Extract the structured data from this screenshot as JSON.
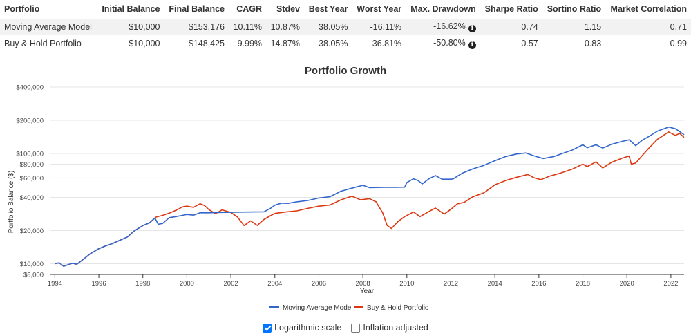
{
  "table": {
    "headers": [
      "Portfolio",
      "Initial Balance",
      "Final Balance",
      "CAGR",
      "Stdev",
      "Best Year",
      "Worst Year",
      "Max. Drawdown",
      "Sharpe Ratio",
      "Sortino Ratio",
      "Market Correlation"
    ],
    "rows": [
      {
        "portfolio": "Moving Average Model",
        "initial": "$10,000",
        "final": "$153,176",
        "cagr": "10.11%",
        "stdev": "10.87%",
        "best": "38.05%",
        "worst": "-16.11%",
        "drawdown": "-16.62%",
        "sharpe": "0.74",
        "sortino": "1.15",
        "correlation": "0.71"
      },
      {
        "portfolio": "Buy & Hold Portfolio",
        "initial": "$10,000",
        "final": "$148,425",
        "cagr": "9.99%",
        "stdev": "14.87%",
        "best": "38.05%",
        "worst": "-36.81%",
        "drawdown": "-50.80%",
        "sharpe": "0.57",
        "sortino": "0.83",
        "correlation": "0.99"
      }
    ]
  },
  "chart_data": {
    "type": "line",
    "title": "Portfolio Growth",
    "xlabel": "Year",
    "ylabel": "Portfolio Balance ($)",
    "y_scale": "log",
    "ylim": [
      8000,
      400000
    ],
    "xlim": [
      1993.8,
      2022.6
    ],
    "grid": true,
    "legend_position": "bottom",
    "x_ticks": [
      1994,
      1996,
      1998,
      2000,
      2002,
      2004,
      2006,
      2008,
      2010,
      2012,
      2014,
      2016,
      2018,
      2020,
      2022
    ],
    "y_ticks": [
      {
        "value": 8000,
        "label": "$8,000"
      },
      {
        "value": 10000,
        "label": "$10,000"
      },
      {
        "value": 20000,
        "label": "$20,000"
      },
      {
        "value": 40000,
        "label": "$40,000"
      },
      {
        "value": 60000,
        "label": "$60,000"
      },
      {
        "value": 80000,
        "label": "$80,000"
      },
      {
        "value": 100000,
        "label": "$100,000"
      },
      {
        "value": 200000,
        "label": "$200,000"
      },
      {
        "value": 400000,
        "label": "$400,000"
      }
    ],
    "series": [
      {
        "name": "Moving Average Model",
        "color": "#3366cc",
        "points": [
          [
            1994.0,
            10000
          ],
          [
            1994.2,
            10200
          ],
          [
            1994.4,
            9500
          ],
          [
            1994.6,
            9800
          ],
          [
            1994.8,
            10100
          ],
          [
            1995.0,
            9900
          ],
          [
            1995.3,
            11000
          ],
          [
            1995.6,
            12300
          ],
          [
            1996.0,
            13700
          ],
          [
            1996.3,
            14500
          ],
          [
            1996.6,
            15200
          ],
          [
            1997.0,
            16500
          ],
          [
            1997.3,
            17500
          ],
          [
            1997.6,
            19800
          ],
          [
            1998.0,
            22200
          ],
          [
            1998.3,
            23500
          ],
          [
            1998.55,
            26000
          ],
          [
            1998.7,
            22800
          ],
          [
            1998.9,
            23200
          ],
          [
            1999.2,
            26200
          ],
          [
            1999.5,
            26800
          ],
          [
            1999.8,
            27500
          ],
          [
            2000.0,
            28000
          ],
          [
            2000.3,
            27600
          ],
          [
            2000.6,
            29000
          ],
          [
            2001.0,
            29000
          ],
          [
            2001.5,
            29200
          ],
          [
            2002.0,
            29300
          ],
          [
            2002.5,
            29400
          ],
          [
            2003.0,
            29500
          ],
          [
            2003.5,
            29600
          ],
          [
            2003.8,
            31800
          ],
          [
            2004.0,
            34000
          ],
          [
            2004.3,
            35500
          ],
          [
            2004.6,
            35300
          ],
          [
            2005.0,
            36500
          ],
          [
            2005.5,
            37500
          ],
          [
            2006.0,
            39500
          ],
          [
            2006.5,
            40500
          ],
          [
            2007.0,
            45500
          ],
          [
            2007.5,
            48500
          ],
          [
            2008.0,
            51500
          ],
          [
            2008.3,
            49000
          ],
          [
            2008.6,
            49200
          ],
          [
            2009.0,
            49300
          ],
          [
            2009.5,
            49400
          ],
          [
            2009.9,
            49500
          ],
          [
            2010.0,
            54500
          ],
          [
            2010.3,
            59000
          ],
          [
            2010.5,
            57000
          ],
          [
            2010.7,
            53000
          ],
          [
            2011.0,
            59000
          ],
          [
            2011.3,
            63000
          ],
          [
            2011.6,
            58500
          ],
          [
            2012.0,
            58500
          ],
          [
            2012.1,
            58800
          ],
          [
            2012.5,
            66000
          ],
          [
            2013.0,
            72500
          ],
          [
            2013.5,
            78000
          ],
          [
            2014.0,
            86000
          ],
          [
            2014.5,
            94000
          ],
          [
            2015.0,
            99000
          ],
          [
            2015.4,
            101000
          ],
          [
            2015.8,
            95000
          ],
          [
            2016.2,
            90000
          ],
          [
            2016.7,
            94000
          ],
          [
            2017.0,
            99000
          ],
          [
            2017.5,
            107000
          ],
          [
            2018.0,
            120000
          ],
          [
            2018.2,
            113000
          ],
          [
            2018.6,
            120000
          ],
          [
            2018.9,
            112000
          ],
          [
            2019.3,
            121000
          ],
          [
            2019.8,
            129000
          ],
          [
            2020.1,
            133000
          ],
          [
            2020.2,
            128000
          ],
          [
            2020.4,
            118000
          ],
          [
            2020.7,
            132000
          ],
          [
            2021.0,
            143000
          ],
          [
            2021.4,
            160000
          ],
          [
            2021.9,
            174000
          ],
          [
            2022.2,
            168000
          ],
          [
            2022.4,
            158000
          ],
          [
            2022.6,
            148000
          ]
        ]
      },
      {
        "name": "Buy & Hold Portfolio",
        "color": "#dc3912",
        "points": [
          [
            1994.0,
            10000
          ],
          [
            1994.2,
            10200
          ],
          [
            1994.4,
            9500
          ],
          [
            1994.6,
            9800
          ],
          [
            1994.8,
            10100
          ],
          [
            1995.0,
            9900
          ],
          [
            1995.3,
            11000
          ],
          [
            1995.6,
            12300
          ],
          [
            1996.0,
            13700
          ],
          [
            1996.3,
            14500
          ],
          [
            1996.6,
            15200
          ],
          [
            1997.0,
            16500
          ],
          [
            1997.3,
            17500
          ],
          [
            1997.6,
            19800
          ],
          [
            1998.0,
            22200
          ],
          [
            1998.3,
            23500
          ],
          [
            1998.6,
            26500
          ],
          [
            1998.9,
            27500
          ],
          [
            1999.2,
            28800
          ],
          [
            1999.5,
            30500
          ],
          [
            1999.8,
            32800
          ],
          [
            2000.0,
            33300
          ],
          [
            2000.3,
            32500
          ],
          [
            2000.6,
            35000
          ],
          [
            2000.8,
            33800
          ],
          [
            2001.0,
            31000
          ],
          [
            2001.3,
            28500
          ],
          [
            2001.6,
            30800
          ],
          [
            2002.0,
            29200
          ],
          [
            2002.3,
            26600
          ],
          [
            2002.6,
            22200
          ],
          [
            2002.9,
            24500
          ],
          [
            2003.2,
            22300
          ],
          [
            2003.5,
            25200
          ],
          [
            2003.8,
            27300
          ],
          [
            2004.0,
            28600
          ],
          [
            2004.5,
            29500
          ],
          [
            2005.0,
            30200
          ],
          [
            2005.5,
            31800
          ],
          [
            2006.0,
            33300
          ],
          [
            2006.5,
            34100
          ],
          [
            2007.0,
            38000
          ],
          [
            2007.5,
            41000
          ],
          [
            2007.9,
            38000
          ],
          [
            2008.3,
            39000
          ],
          [
            2008.6,
            36500
          ],
          [
            2008.9,
            29000
          ],
          [
            2009.1,
            22300
          ],
          [
            2009.3,
            20900
          ],
          [
            2009.6,
            24200
          ],
          [
            2009.9,
            26800
          ],
          [
            2010.3,
            29500
          ],
          [
            2010.6,
            26800
          ],
          [
            2011.0,
            29800
          ],
          [
            2011.3,
            32000
          ],
          [
            2011.7,
            28200
          ],
          [
            2012.0,
            31200
          ],
          [
            2012.3,
            35000
          ],
          [
            2012.6,
            36000
          ],
          [
            2013.0,
            40500
          ],
          [
            2013.5,
            44000
          ],
          [
            2014.0,
            52000
          ],
          [
            2014.5,
            57000
          ],
          [
            2015.0,
            61000
          ],
          [
            2015.5,
            64500
          ],
          [
            2015.8,
            60000
          ],
          [
            2016.1,
            58000
          ],
          [
            2016.5,
            62500
          ],
          [
            2017.0,
            66500
          ],
          [
            2017.5,
            72000
          ],
          [
            2018.0,
            80000
          ],
          [
            2018.2,
            76000
          ],
          [
            2018.6,
            84000
          ],
          [
            2018.9,
            74000
          ],
          [
            2019.3,
            83000
          ],
          [
            2019.8,
            91000
          ],
          [
            2020.1,
            95000
          ],
          [
            2020.2,
            80000
          ],
          [
            2020.4,
            82000
          ],
          [
            2020.7,
            96000
          ],
          [
            2021.0,
            112000
          ],
          [
            2021.4,
            135000
          ],
          [
            2021.9,
            157000
          ],
          [
            2022.2,
            146000
          ],
          [
            2022.4,
            152000
          ],
          [
            2022.6,
            140000
          ]
        ]
      }
    ]
  },
  "controls": {
    "log_scale_label": "Logarithmic scale",
    "log_scale_checked": true,
    "inflation_label": "Inflation adjusted",
    "inflation_checked": false
  }
}
